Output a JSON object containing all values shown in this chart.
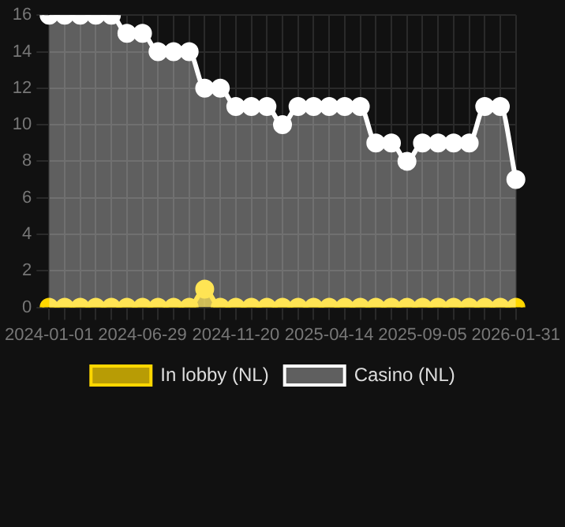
{
  "chart_data": {
    "type": "area",
    "categories": [
      "2024-01-01",
      null,
      null,
      null,
      null,
      null,
      "2024-06-29",
      null,
      null,
      null,
      null,
      null,
      "2024-11-20",
      null,
      null,
      null,
      null,
      null,
      "2025-04-14",
      null,
      null,
      null,
      null,
      null,
      "2025-09-05",
      null,
      null,
      null,
      null,
      null,
      "2026-01-31"
    ],
    "series": [
      {
        "name": "In lobby (NL)",
        "color": "#ffd700",
        "values": [
          0,
          0,
          0,
          0,
          0,
          0,
          0,
          0,
          0,
          0,
          1,
          0,
          0,
          0,
          0,
          0,
          0,
          0,
          0,
          0,
          0,
          0,
          0,
          0,
          0,
          0,
          0,
          0,
          0,
          0,
          0
        ]
      },
      {
        "name": "Casino (NL)",
        "color": "#ffffff",
        "values": [
          16,
          16,
          16,
          16,
          16,
          15,
          15,
          14,
          14,
          14,
          12,
          12,
          11,
          11,
          11,
          10,
          11,
          11,
          11,
          11,
          11,
          9,
          9,
          8,
          9,
          9,
          9,
          9,
          11,
          11,
          7
        ]
      }
    ],
    "ylim": [
      0,
      16
    ],
    "yticks": [
      0,
      2,
      4,
      6,
      8,
      10,
      12,
      14,
      16
    ],
    "grid": true,
    "legend": "bottom",
    "marker": "circle"
  }
}
